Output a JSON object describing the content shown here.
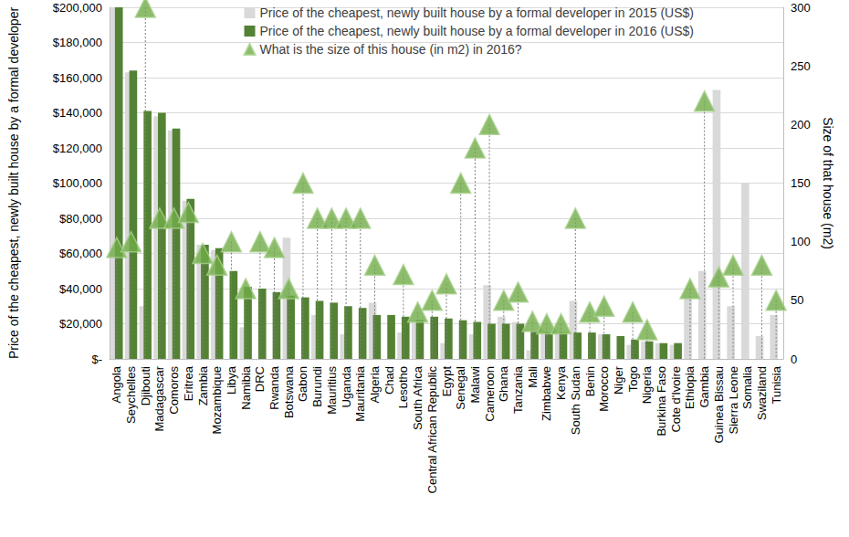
{
  "chart_data": {
    "type": "bar",
    "y_label": "Price of the cheapest, newly built house by a formal developer",
    "y2_label": "Size of that house (m2)",
    "categories": [
      "Angola",
      "Seychelles",
      "Djibouti",
      "Madagascar",
      "Comoros",
      "Eritrea",
      "Zambia",
      "Mozambique",
      "Libya",
      "Namibia",
      "DRC",
      "Rwanda",
      "Botswana",
      "Gabon",
      "Burundi",
      "Mauritius",
      "Uganda",
      "Mauritania",
      "Algeria",
      "Chad",
      "Lesotho",
      "South Africa",
      "Central African Republic",
      "Egypt",
      "Senegal",
      "Malawi",
      "Cameroon",
      "Ghana",
      "Tanzania",
      "Mali",
      "Zimbabwe",
      "Kenya",
      "South Sudan",
      "Benin",
      "Morocco",
      "Niger",
      "Togo",
      "Nigeria",
      "Burkina Faso",
      "Cote d'Ivoire",
      "Ethiopia",
      "Gambia",
      "Guinea Bissau",
      "Sierra Leone",
      "Somalia",
      "Swaziland",
      "Tunisia"
    ],
    "series": [
      {
        "name": "Price of the cheapest, newly built house by a formal developer in 2015 (US$)",
        "type": "bar",
        "color": "#d9d9d9",
        "values": [
          200000,
          163000,
          30000,
          138000,
          130000,
          90000,
          65000,
          62000,
          null,
          18000,
          null,
          null,
          69000,
          null,
          25000,
          null,
          14000,
          null,
          32000,
          null,
          15000,
          22000,
          null,
          9000,
          null,
          14000,
          42000,
          24000,
          21000,
          5000,
          16000,
          15000,
          33000,
          null,
          14000,
          null,
          8000,
          10000,
          9000,
          8000,
          35000,
          50000,
          153000,
          30000,
          100000,
          13000,
          25000
        ]
      },
      {
        "name": "Price of the cheapest, newly built house by a formal developer in 2016 (US$)",
        "type": "bar",
        "color": "#548235",
        "values": [
          200000,
          164000,
          141000,
          140000,
          131000,
          91000,
          65000,
          63000,
          50000,
          41000,
          40000,
          38000,
          36000,
          35000,
          33000,
          32000,
          30000,
          29000,
          25000,
          25000,
          24000,
          22000,
          24000,
          23000,
          22000,
          21000,
          20000,
          20000,
          20000,
          16000,
          15000,
          15000,
          15000,
          15000,
          14000,
          13000,
          11000,
          10000,
          9000,
          9000,
          null,
          null,
          null,
          null,
          null,
          null,
          null
        ]
      },
      {
        "name": "What is the size of this house (in m2) in 2016?",
        "type": "scatter",
        "marker": "triangle",
        "axis": "y2",
        "color": "#70ad47",
        "values": [
          95,
          100,
          300,
          120,
          120,
          125,
          90,
          80,
          100,
          60,
          100,
          95,
          60,
          150,
          120,
          120,
          120,
          120,
          80,
          null,
          72,
          40,
          50,
          64,
          150,
          180,
          200,
          50,
          57,
          32,
          30,
          30,
          120,
          40,
          45,
          null,
          40,
          25,
          null,
          null,
          60,
          220,
          70,
          80,
          null,
          80,
          50
        ]
      }
    ],
    "ylim": [
      0,
      200000
    ],
    "yticks": [
      {
        "value": 0,
        "label": "$-"
      },
      {
        "value": 20000,
        "label": "$20,000"
      },
      {
        "value": 40000,
        "label": "$40,000"
      },
      {
        "value": 60000,
        "label": "$60,000"
      },
      {
        "value": 80000,
        "label": "$80,000"
      },
      {
        "value": 100000,
        "label": "$100,000"
      },
      {
        "value": 120000,
        "label": "$120,000"
      },
      {
        "value": 140000,
        "label": "$140,000"
      },
      {
        "value": 160000,
        "label": "$160,000"
      },
      {
        "value": 180000,
        "label": "$180,000"
      },
      {
        "value": 200000,
        "label": "$200,000"
      }
    ],
    "y2lim": [
      0,
      300
    ],
    "y2ticks": [
      0,
      50,
      100,
      150,
      200,
      250,
      300
    ],
    "grid": true,
    "legend": "top-right"
  }
}
